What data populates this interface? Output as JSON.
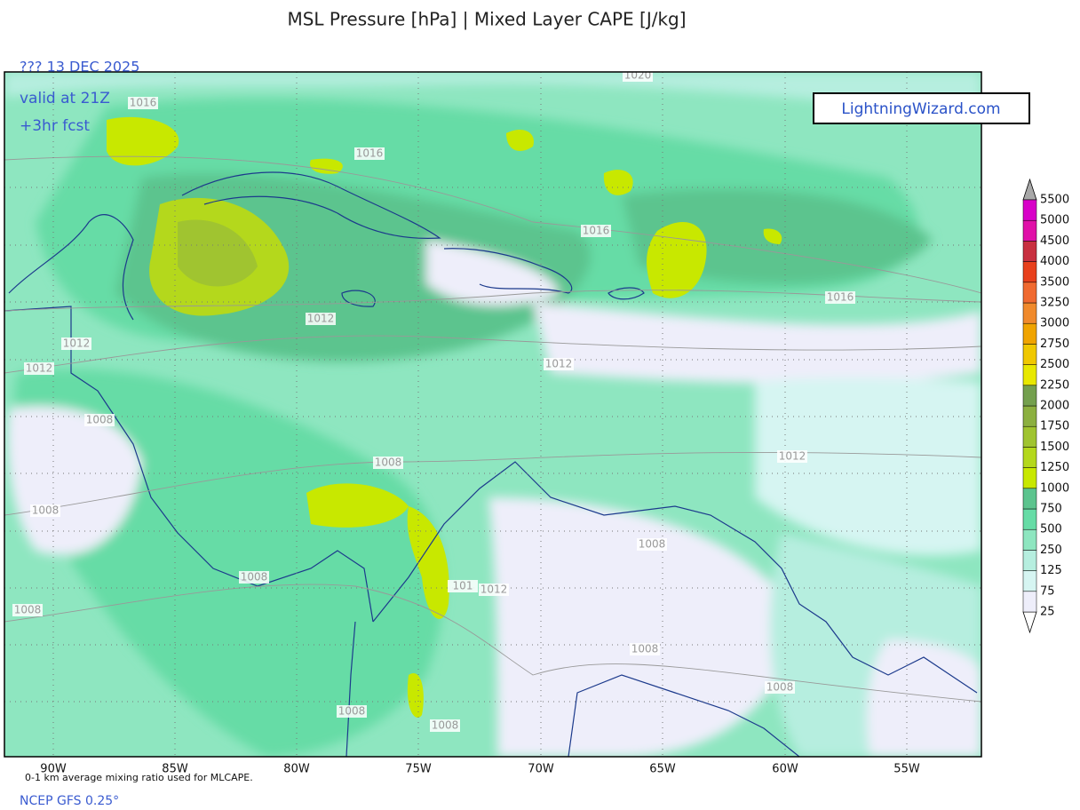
{
  "header": {
    "title": "MSL Pressure [hPa]  | Mixed Layer CAPE [J/kg]"
  },
  "run_info": {
    "date": "??? 13 DEC 2025",
    "valid": "valid at 21Z",
    "forecast": "+3hr fcst"
  },
  "branding": "LightningWizard.com",
  "longitude_labels": [
    "90W",
    "85W",
    "80W",
    "75W",
    "70W",
    "65W",
    "60W",
    "55W"
  ],
  "isobar_labels": [
    "1020",
    "1016",
    "1016",
    "1016",
    "1016",
    "1012",
    "1012",
    "1012",
    "1012",
    "1012",
    "1008",
    "1008",
    "1008",
    "1008",
    "1008",
    "1008",
    "1012",
    "101",
    "1008",
    "1008",
    "1008",
    "1008"
  ],
  "colorbar": {
    "levels": [
      25,
      75,
      125,
      250,
      500,
      750,
      1000,
      1250,
      1500,
      1750,
      2000,
      2250,
      2500,
      2750,
      3000,
      3250,
      3500,
      4000,
      4500,
      5000,
      5500
    ],
    "colors": [
      "#eeeefa",
      "#d6f5f2",
      "#b6eedf",
      "#8ee6c0",
      "#66dca6",
      "#5cc48e",
      "#c8e800",
      "#b4d81c",
      "#a0c430",
      "#8cb040",
      "#74a04e",
      "#e8e800",
      "#f0c800",
      "#f0a400",
      "#f08a2c",
      "#f06a30",
      "#e8401c",
      "#c83040",
      "#e010a8",
      "#d800c8",
      "#b800c0"
    ],
    "under_color": "#ffffff",
    "over_color": "#a8a8a8"
  },
  "footnotes": {
    "method": "0-1 km average mixing ratio used for MLCAPE.",
    "model": "NCEP GFS 0.25°"
  }
}
